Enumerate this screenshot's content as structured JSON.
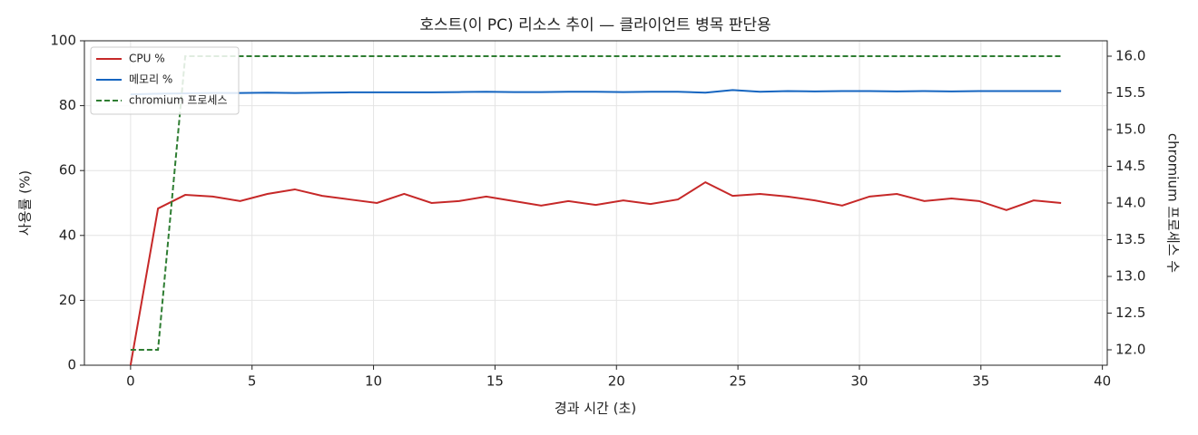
{
  "chart_data": {
    "type": "line",
    "title": "호스트(이 PC) 리소스 추이 — 클라이언트 병목 판단용",
    "xlabel": "경과 시간 (초)",
    "ylabel": "사용률 (%)",
    "y2label": "chromium 프로세스 수",
    "x": [
      0,
      1.13,
      2.25,
      3.38,
      4.51,
      5.63,
      6.76,
      7.89,
      9.01,
      10.14,
      11.26,
      12.39,
      13.52,
      14.64,
      15.77,
      16.9,
      18.02,
      19.15,
      20.28,
      21.4,
      22.53,
      23.66,
      24.78,
      25.91,
      27.04,
      28.16,
      29.29,
      30.42,
      31.54,
      32.67,
      33.79,
      34.92,
      36.05,
      37.17,
      38.3
    ],
    "series": [
      {
        "name": "CPU %",
        "color": "#c62828",
        "values": [
          0,
          48.3,
          52.5,
          52,
          50.6,
          52.8,
          54.2,
          52.2,
          51.1,
          50,
          52.8,
          50,
          50.6,
          52,
          50.6,
          49.2,
          50.6,
          49.4,
          50.8,
          49.7,
          51.1,
          56.4,
          52.2,
          52.8,
          52,
          50.8,
          49.2,
          52,
          52.8,
          50.6,
          51.4,
          50.6,
          47.8,
          50.8,
          50
        ]
      },
      {
        "name": "메모리 %",
        "color": "#1565c0",
        "values": [
          83.5,
          83.7,
          83.8,
          83.9,
          83.9,
          84,
          83.9,
          84,
          84.1,
          84.1,
          84.1,
          84.1,
          84.2,
          84.3,
          84.2,
          84.2,
          84.3,
          84.3,
          84.2,
          84.3,
          84.3,
          84,
          84.8,
          84.3,
          84.5,
          84.4,
          84.5,
          84.5,
          84.4,
          84.5,
          84.4,
          84.5,
          84.5,
          84.5,
          84.5
        ]
      },
      {
        "name": "chromium 프로세스",
        "color": "#2e7d32",
        "axis": "y2",
        "linestyle": "dashed",
        "values": [
          12,
          12,
          16,
          16,
          16,
          16,
          16,
          16,
          16,
          16,
          16,
          16,
          16,
          16,
          16,
          16,
          16,
          16,
          16,
          16,
          16,
          16,
          16,
          16,
          16,
          16,
          16,
          16,
          16,
          16,
          16,
          16,
          16,
          16,
          16
        ]
      }
    ],
    "xlim": [
      -1.9,
      40.2
    ],
    "xticks": [
      0,
      5,
      10,
      15,
      20,
      25,
      30,
      35,
      40
    ],
    "ylim": [
      0,
      100
    ],
    "yticks": [
      0,
      20,
      40,
      60,
      80,
      100
    ],
    "y2lim": [
      11.79,
      16.21
    ],
    "y2ticks": [
      {
        "value": 12,
        "label": "12.0"
      },
      {
        "value": 12.5,
        "label": "12.5"
      },
      {
        "value": 13,
        "label": "13.0"
      },
      {
        "value": 13.5,
        "label": "13.5"
      },
      {
        "value": 14,
        "label": "14.0"
      },
      {
        "value": 14.5,
        "label": "14.5"
      },
      {
        "value": 15,
        "label": "15.0"
      },
      {
        "value": 15.5,
        "label": "15.5"
      },
      {
        "value": 16,
        "label": "16.0"
      }
    ],
    "grid": true,
    "legend": "upper-left"
  }
}
